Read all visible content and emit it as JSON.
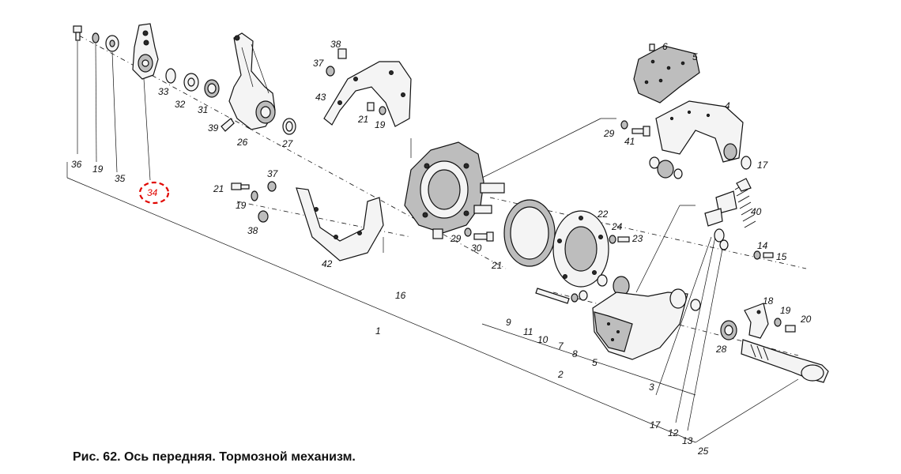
{
  "figure": {
    "caption": "Рис. 62. Ось передняя. Тормозной механизм.",
    "highlight_color": "#e10600",
    "highlighted_callout": "34"
  },
  "callouts": {
    "c36": "36",
    "c19a": "19",
    "c35": "35",
    "c34": "34",
    "c33": "33",
    "c32": "32",
    "c31": "31",
    "c39": "39",
    "c26": "26",
    "c27": "27",
    "c38a": "38",
    "c37a": "37",
    "c43": "43",
    "c21a": "21",
    "c19b": "19",
    "c6": "6",
    "c5a": "5",
    "c4": "4",
    "c29a": "29",
    "c41": "41",
    "c17a": "17",
    "c21b": "21",
    "c37b": "37",
    "c19c": "19",
    "c38b": "38",
    "c42": "42",
    "c16": "16",
    "c29b": "29",
    "c30": "30",
    "c21c": "21",
    "c22": "22",
    "c24": "24",
    "c23": "23",
    "c40": "40",
    "c14": "14",
    "c15": "15",
    "c1": "1",
    "c9": "9",
    "c11": "11",
    "c10": "10",
    "c7": "7",
    "c8": "8",
    "c5b": "5",
    "c2": "2",
    "c3": "3",
    "c18": "18",
    "c19d": "19",
    "c20": "20",
    "c28": "28",
    "c17b": "17",
    "c12": "12",
    "c13": "13",
    "c25": "25"
  }
}
